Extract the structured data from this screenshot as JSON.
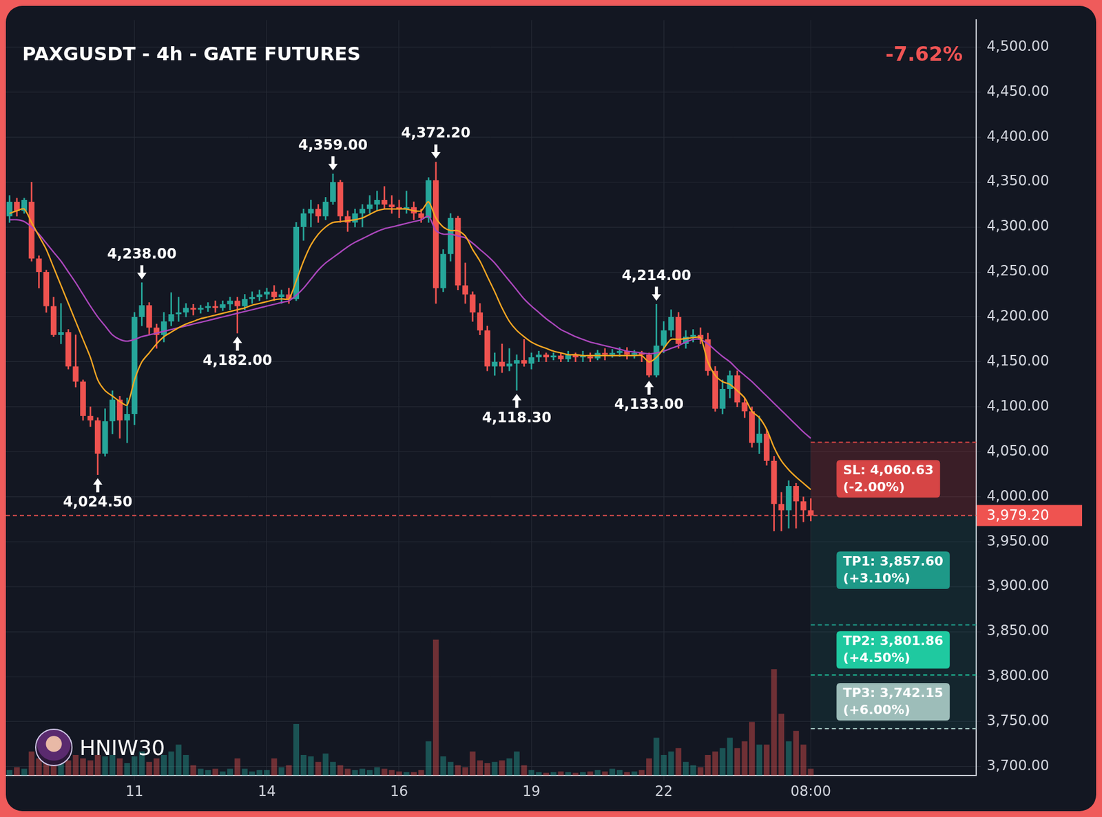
{
  "chart_data": {
    "type": "candlestick",
    "title": "PAXGUSDT - 4h - GATE FUTURES",
    "change_label": "-7.62%",
    "watermark": "HNIW30",
    "categories": [
      null,
      null,
      null,
      null,
      null,
      null,
      null,
      null,
      null,
      null,
      null,
      null,
      null,
      null,
      null,
      null,
      null,
      "11",
      null,
      null,
      null,
      null,
      null,
      null,
      null,
      null,
      null,
      null,
      null,
      null,
      null,
      null,
      null,
      null,
      null,
      "14",
      null,
      null,
      null,
      null,
      null,
      null,
      null,
      null,
      null,
      null,
      null,
      null,
      null,
      null,
      null,
      null,
      null,
      "16",
      null,
      null,
      null,
      null,
      null,
      null,
      null,
      null,
      null,
      null,
      null,
      null,
      null,
      null,
      null,
      null,
      null,
      "19",
      null,
      null,
      null,
      null,
      null,
      null,
      null,
      null,
      null,
      null,
      null,
      null,
      null,
      null,
      null,
      null,
      null,
      "22",
      null,
      null,
      null,
      null,
      null,
      null,
      null,
      null,
      null,
      null,
      null,
      null,
      null,
      null,
      null,
      null,
      null,
      null,
      null,
      "08:00",
      null,
      null,
      null,
      null,
      null,
      null,
      null,
      null,
      null,
      null,
      null,
      null,
      null,
      null,
      null,
      null,
      null,
      null,
      null,
      null,
      null,
      null
    ],
    "open": [
      4312,
      4328,
      4318,
      4328,
      4265,
      4250,
      4212,
      4180,
      4183,
      4145,
      4128,
      4090,
      4085,
      4048,
      4084,
      4108,
      4085,
      4092,
      4200,
      4213,
      4188,
      4180,
      4195,
      4203,
      4205,
      4210,
      4208,
      4210,
      4212,
      4210,
      4214,
      4218,
      4212,
      4220,
      4222,
      4225,
      4228,
      4222,
      4225,
      4220,
      4300,
      4315,
      4320,
      4312,
      4328,
      4350,
      4312,
      4305,
      4315,
      4320,
      4325,
      4330,
      4325,
      4322,
      4320,
      4322,
      4315,
      4310,
      4352,
      4232,
      4270,
      4310,
      4235,
      4225,
      4205,
      4185,
      4145,
      4150,
      4145,
      4148,
      4152,
      4148,
      4155,
      4158,
      4155,
      4157,
      4153,
      4158,
      4155,
      4156,
      4154,
      4160,
      4158,
      4160,
      4162,
      4158,
      4160,
      4158,
      4135,
      4168,
      4185,
      4200,
      4170,
      4178,
      4180,
      4175,
      4140,
      4098,
      4120,
      4135,
      4105,
      4095,
      4060,
      4070,
      4040,
      3992,
      3985,
      4012,
      3995,
      3985,
      null,
      null,
      null,
      null,
      null,
      null,
      null,
      null,
      null,
      null,
      null,
      null,
      null,
      null,
      null,
      null,
      null,
      null,
      null,
      null,
      null,
      null
    ],
    "high": [
      4335,
      4332,
      4332,
      4350,
      4268,
      4252,
      4222,
      4215,
      4186,
      4180,
      4130,
      4100,
      4088,
      4098,
      4118,
      4112,
      4110,
      4205,
      4238,
      4216,
      4192,
      4205,
      4227,
      4222,
      4215,
      4214,
      4213,
      4216,
      4218,
      4218,
      4222,
      4222,
      4225,
      4228,
      4230,
      4232,
      4235,
      4230,
      4232,
      4305,
      4320,
      4330,
      4325,
      4333,
      4359,
      4352,
      4318,
      4320,
      4325,
      4335,
      4340,
      4345,
      4335,
      4330,
      4340,
      4328,
      4320,
      4355,
      4372.2,
      4275,
      4315,
      4312,
      4260,
      4228,
      4215,
      4190,
      4160,
      4170,
      4165,
      4158,
      4175,
      4160,
      4162,
      4160,
      4160,
      4160,
      4162,
      4160,
      4162,
      4160,
      4163,
      4165,
      4164,
      4166,
      4166,
      4163,
      4162,
      4160,
      4214,
      4195,
      4208,
      4205,
      4185,
      4186,
      4188,
      4182,
      4145,
      4130,
      4140,
      4140,
      4110,
      4100,
      4090,
      4075,
      4045,
      4005,
      4018,
      4015,
      4000,
      3998,
      null,
      null,
      null,
      null,
      null,
      null,
      null,
      null,
      null,
      null,
      null,
      null,
      null,
      null,
      null,
      null,
      null,
      null,
      null,
      null,
      null,
      null
    ],
    "low": [
      4305,
      4312,
      4315,
      4262,
      4232,
      4205,
      4178,
      4170,
      4142,
      4122,
      4085,
      4078,
      4024.5,
      4045,
      4070,
      4065,
      4060,
      4080,
      4190,
      4180,
      4165,
      4172,
      4190,
      4195,
      4200,
      4202,
      4204,
      4206,
      4205,
      4207,
      4208,
      4182,
      4208,
      4215,
      4218,
      4220,
      4218,
      4215,
      4215,
      4218,
      4285,
      4300,
      4305,
      4308,
      4325,
      4305,
      4295,
      4300,
      4300,
      4315,
      4318,
      4320,
      4315,
      4310,
      4315,
      4308,
      4305,
      4305,
      4215,
      4228,
      4262,
      4230,
      4215,
      4195,
      4180,
      4140,
      4135,
      4138,
      4140,
      4118.3,
      4145,
      4142,
      4150,
      4150,
      4152,
      4150,
      4150,
      4150,
      4150,
      4150,
      4152,
      4152,
      4155,
      4156,
      4153,
      4154,
      4150,
      4133,
      4133,
      4160,
      4178,
      4165,
      4165,
      4172,
      4170,
      4135,
      4095,
      4092,
      4110,
      4100,
      4088,
      4055,
      4048,
      4035,
      3962,
      3962,
      3965,
      3965,
      3972,
      3973,
      null,
      null,
      null,
      null,
      null,
      null,
      null,
      null,
      null,
      null,
      null,
      null,
      null,
      null,
      null,
      null,
      null,
      null,
      null,
      null,
      null,
      null
    ],
    "close": [
      4328,
      4318,
      4330,
      4265,
      4250,
      4212,
      4180,
      4183,
      4145,
      4128,
      4090,
      4085,
      4048,
      4084,
      4108,
      4085,
      4092,
      4200,
      4213,
      4188,
      4180,
      4195,
      4203,
      4205,
      4210,
      4208,
      4210,
      4212,
      4210,
      4214,
      4218,
      4212,
      4220,
      4222,
      4225,
      4228,
      4222,
      4225,
      4220,
      4300,
      4315,
      4320,
      4312,
      4328,
      4350,
      4312,
      4305,
      4315,
      4320,
      4325,
      4330,
      4325,
      4322,
      4320,
      4322,
      4315,
      4310,
      4352,
      4232,
      4270,
      4310,
      4235,
      4225,
      4205,
      4185,
      4145,
      4150,
      4145,
      4148,
      4152,
      4148,
      4155,
      4158,
      4155,
      4157,
      4153,
      4158,
      4155,
      4156,
      4154,
      4160,
      4158,
      4160,
      4162,
      4158,
      4160,
      4158,
      4135,
      4168,
      4185,
      4200,
      4170,
      4178,
      4180,
      4175,
      4140,
      4098,
      4120,
      4135,
      4105,
      4095,
      4060,
      4070,
      4040,
      3992,
      3985,
      4012,
      3995,
      3985,
      3979.2,
      null,
      null,
      null,
      null,
      null,
      null,
      null,
      null,
      null,
      null,
      null,
      null,
      null,
      null,
      null,
      null,
      null,
      null,
      null,
      null,
      null,
      null
    ],
    "series": [
      {
        "type": "line",
        "color": "#f5a623",
        "values": [
          4315,
          4318,
          4320,
          4305,
          4290,
          4275,
          4255,
          4235,
          4215,
          4195,
          4175,
          4155,
          4130,
          4118,
          4112,
          4106,
          4102,
          4130,
          4150,
          4160,
          4170,
          4178,
          4183,
          4188,
          4192,
          4195,
          4198,
          4200,
          4202,
          4204,
          4206,
          4208,
          4210,
          4213,
          4215,
          4217,
          4219,
          4220,
          4220,
          4240,
          4262,
          4280,
          4292,
          4300,
          4305,
          4306,
          4307,
          4308,
          4310,
          4314,
          4318,
          4320,
          4320,
          4320,
          4320,
          4318,
          4318,
          4328,
          4310,
          4300,
          4296,
          4296,
          4290,
          4275,
          4262,
          4245,
          4228,
          4210,
          4195,
          4185,
          4178,
          4172,
          4168,
          4165,
          4162,
          4160,
          4158,
          4158,
          4157,
          4157,
          4157,
          4157,
          4157,
          4157,
          4157,
          4157,
          4157,
          4150,
          4155,
          4165,
          4175,
          4175,
          4176,
          4177,
          4177,
          4150,
          4135,
          4128,
          4125,
          4118,
          4110,
          4095,
          4088,
          4075,
          4055,
          4040,
          4030,
          4022,
          4015,
          4008,
          null,
          null,
          null,
          null,
          null,
          null,
          null,
          null,
          null,
          null,
          null,
          null,
          null,
          null,
          null,
          null,
          null,
          null,
          null,
          null,
          null,
          null
        ]
      },
      {
        "type": "line",
        "color": "#ab47bc",
        "values": [
          4308,
          4308,
          4306,
          4300,
          4292,
          4282,
          4272,
          4262,
          4250,
          4238,
          4225,
          4212,
          4200,
          4190,
          4180,
          4175,
          4173,
          4175,
          4178,
          4180,
          4182,
          4184,
          4186,
          4188,
          4190,
          4192,
          4194,
          4196,
          4198,
          4200,
          4202,
          4204,
          4206,
          4208,
          4210,
          4212,
          4214,
          4216,
          4218,
          4224,
          4232,
          4242,
          4252,
          4260,
          4266,
          4272,
          4278,
          4283,
          4287,
          4291,
          4295,
          4298,
          4300,
          4302,
          4304,
          4306,
          4308,
          4312,
          4296,
          4292,
          4292,
          4290,
          4288,
          4282,
          4275,
          4268,
          4260,
          4250,
          4240,
          4230,
          4220,
          4212,
          4205,
          4198,
          4192,
          4186,
          4182,
          4178,
          4175,
          4172,
          4170,
          4168,
          4166,
          4164,
          4162,
          4161,
          4160,
          4159,
          4160,
          4162,
          4165,
          4168,
          4172,
          4175,
          4175,
          4170,
          4163,
          4156,
          4150,
          4142,
          4135,
          4128,
          4120,
          4112,
          4104,
          4096,
          4088,
          4080,
          4072,
          4065,
          null,
          null,
          null,
          null,
          null,
          null,
          null,
          null,
          null,
          null,
          null,
          null,
          null,
          null,
          null,
          null,
          null,
          null,
          null,
          null,
          null,
          null
        ]
      },
      {
        "type": "bar",
        "axis": "y2",
        "values": [
          8,
          12,
          10,
          35,
          25,
          30,
          28,
          20,
          22,
          30,
          25,
          22,
          30,
          28,
          30,
          25,
          18,
          28,
          35,
          20,
          25,
          30,
          35,
          45,
          30,
          15,
          10,
          8,
          10,
          6,
          10,
          25,
          10,
          6,
          8,
          8,
          25,
          12,
          15,
          75,
          30,
          28,
          20,
          32,
          20,
          15,
          10,
          8,
          10,
          8,
          12,
          10,
          8,
          6,
          5,
          5,
          8,
          50,
          198,
          28,
          20,
          15,
          12,
          35,
          22,
          18,
          20,
          22,
          25,
          35,
          15,
          8,
          5,
          4,
          5,
          6,
          5,
          4,
          5,
          6,
          8,
          6,
          10,
          8,
          5,
          6,
          8,
          25,
          55,
          30,
          35,
          40,
          20,
          15,
          12,
          30,
          35,
          40,
          55,
          40,
          50,
          78,
          45,
          45,
          155,
          90,
          50,
          65,
          45,
          10,
          null,
          null,
          null,
          null,
          null,
          null,
          null,
          null,
          null,
          null,
          null,
          null,
          null,
          null,
          null,
          null,
          null,
          null,
          null,
          null,
          null,
          null
        ]
      }
    ],
    "ylim": [
      3690,
      4530
    ],
    "yticks": [
      {
        "value": 3700,
        "label": "3,700.00"
      },
      {
        "value": 3750,
        "label": "3,750.00"
      },
      {
        "value": 3800,
        "label": "3,800.00"
      },
      {
        "value": 3850,
        "label": "3,850.00"
      },
      {
        "value": 3900,
        "label": "3,900.00"
      },
      {
        "value": 3950,
        "label": "3,950.00"
      },
      {
        "value": 4000,
        "label": "4,000.00"
      },
      {
        "value": 4050,
        "label": "4,050.00"
      },
      {
        "value": 4100,
        "label": "4,100.00"
      },
      {
        "value": 4150,
        "label": "4,150.00"
      },
      {
        "value": 4200,
        "label": "4,200.00"
      },
      {
        "value": 4250,
        "label": "4,250.00"
      },
      {
        "value": 4300,
        "label": "4,300.00"
      },
      {
        "value": 4350,
        "label": "4,350.00"
      },
      {
        "value": 4400,
        "label": "4,400.00"
      },
      {
        "value": 4450,
        "label": "4,450.00"
      },
      {
        "value": 4500,
        "label": "4,500.00"
      }
    ],
    "y2lim": [
      0,
      1100
    ],
    "grid": true,
    "annotations": [
      {
        "label": "4,024.50",
        "index": 12,
        "value": 4024.5,
        "marker": "arrow_up"
      },
      {
        "label": "4,238.00",
        "index": 18,
        "value": 4238,
        "marker": "arrow_down"
      },
      {
        "label": "4,182.00",
        "index": 31,
        "value": 4182,
        "marker": "arrow_up"
      },
      {
        "label": "4,359.00",
        "index": 44,
        "value": 4359,
        "marker": "arrow_down"
      },
      {
        "label": "4,372.20",
        "index": 58,
        "value": 4372.2,
        "marker": "arrow_down"
      },
      {
        "label": "4,118.30",
        "index": 69,
        "value": 4118.3,
        "marker": "arrow_up"
      },
      {
        "label": "4,133.00",
        "index": 87,
        "value": 4133,
        "marker": "arrow_up"
      },
      {
        "label": "4,214.00",
        "index": 88,
        "value": 4214,
        "marker": "arrow_down"
      }
    ],
    "current_price": {
      "value": 3979.2,
      "label": "3,979.20"
    },
    "levels": [
      {
        "label": "SL: 4,060.63",
        "note": "(-2.00%)",
        "value": 4060.63,
        "color": "#d64545"
      },
      {
        "label": "TP1: 3,857.60",
        "note": "(+3.10%)",
        "value": 3857.6,
        "color": "#1e9988"
      },
      {
        "label": "TP2: 3,801.86",
        "note": "(+4.50%)",
        "value": 3801.86,
        "color": "#1fc9a0"
      },
      {
        "label": "TP3: 3,742.15",
        "note": "(+6.00%)",
        "value": 3742.15,
        "color": "#9dbdb9"
      }
    ]
  }
}
